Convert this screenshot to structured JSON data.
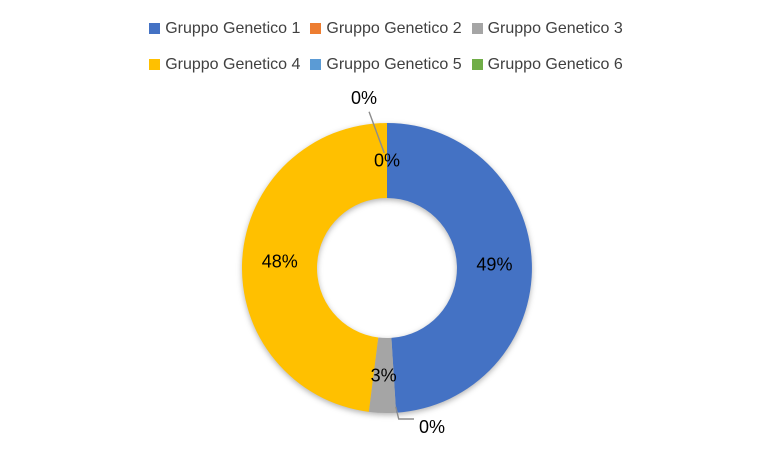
{
  "chart": {
    "title": "",
    "background_color": "#ffffff",
    "legend": {
      "position": "top",
      "rows": 2,
      "items_per_row": 3,
      "text_color": "#404040",
      "items": [
        {
          "label": "Gruppo Genetico 1",
          "color": "#4472C4"
        },
        {
          "label": "Gruppo Genetico 2",
          "color": "#ED7D31"
        },
        {
          "label": "Gruppo Genetico 3",
          "color": "#A5A5A5"
        },
        {
          "label": "Gruppo Genetico 4",
          "color": "#FFC000"
        },
        {
          "label": "Gruppo Genetico 5",
          "color": "#5B9BD5"
        },
        {
          "label": "Gruppo Genetico 6",
          "color": "#70AD47"
        }
      ]
    }
  },
  "chart_data": {
    "type": "pie",
    "subtype": "doughnut",
    "title": "",
    "categories": [
      "Gruppo Genetico 1",
      "Gruppo Genetico 2",
      "Gruppo Genetico 3",
      "Gruppo Genetico 4",
      "Gruppo Genetico 5",
      "Gruppo Genetico 6"
    ],
    "series": [
      {
        "name": "Percentuale",
        "values": [
          49,
          0,
          3,
          48,
          0,
          0
        ]
      }
    ],
    "start_angle_deg": 0,
    "direction": "clockwise",
    "legend_position": "top",
    "data_label_color": "#000000",
    "leader_line_color": "#8c8c8c",
    "slices": [
      {
        "category": "Gruppo Genetico 1",
        "value": 49,
        "label": "49%",
        "color": "#4472C4",
        "label_placement": "inside"
      },
      {
        "category": "Gruppo Genetico 2",
        "value": 0,
        "label": "0%",
        "color": "#ED7D31",
        "label_placement": "callout-bottom"
      },
      {
        "category": "Gruppo Genetico 3",
        "value": 3,
        "label": "3%",
        "color": "#A5A5A5",
        "label_placement": "inside"
      },
      {
        "category": "Gruppo Genetico 4",
        "value": 48,
        "label": "48%",
        "color": "#FFC000",
        "label_placement": "inside"
      },
      {
        "category": "Gruppo Genetico 5",
        "value": 0,
        "label": "0%",
        "color": "#5B9BD5",
        "label_placement": "inside"
      },
      {
        "category": "Gruppo Genetico 6",
        "value": 0,
        "label": "0%",
        "color": "#70AD47",
        "label_placement": "callout-top"
      }
    ]
  }
}
